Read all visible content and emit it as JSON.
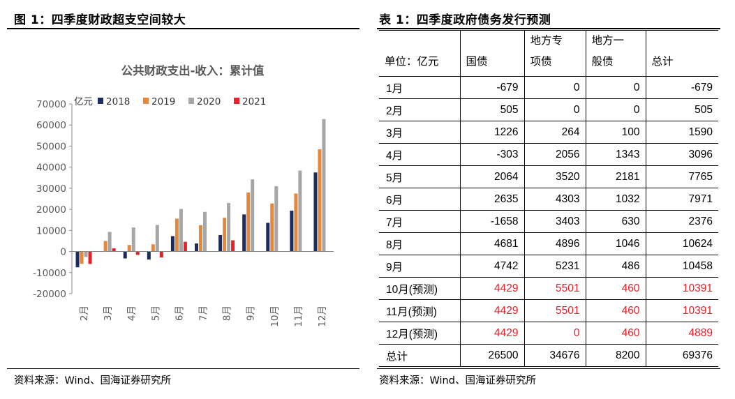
{
  "figure": {
    "title": "图 1：四季度财政超支空间较大",
    "source": "资料来源：Wind、国海证券研究所"
  },
  "table_section": {
    "title": "表 1：四季度政府债务发行预测",
    "source": "资料来源：Wind、国海证券研究所"
  },
  "chart_data": {
    "type": "bar",
    "title": "公共财政支出-收入：累计值",
    "ylabel": "亿元",
    "xlabel": "",
    "ylim": [
      -20000,
      70000
    ],
    "yticks": [
      -20000,
      -10000,
      0,
      10000,
      20000,
      30000,
      40000,
      50000,
      60000,
      70000
    ],
    "grid": false,
    "legend": "top-left",
    "categories": [
      "2月",
      "3月",
      "4月",
      "5月",
      "6月",
      "7月",
      "8月",
      "9月",
      "10月",
      "11月",
      "12月"
    ],
    "series": [
      {
        "name": "2018",
        "color": "#1b2c5f",
        "values": [
          -7500,
          0,
          -3300,
          -3800,
          7300,
          3800,
          7800,
          17600,
          13600,
          19400,
          37500
        ]
      },
      {
        "name": "2019",
        "color": "#e8873a",
        "values": [
          -5800,
          5000,
          3100,
          3400,
          15600,
          12500,
          16000,
          28000,
          22800,
          27500,
          48500
        ]
      },
      {
        "name": "2020",
        "color": "#a6a6a6",
        "values": [
          -2600,
          9300,
          11400,
          12600,
          20200,
          18800,
          23000,
          34200,
          31000,
          38400,
          62800
        ]
      },
      {
        "name": "2021",
        "color": "#e8202a",
        "values": [
          -5900,
          1500,
          -1600,
          -2800,
          4600,
          null,
          5300,
          null,
          null,
          null,
          null
        ]
      }
    ]
  },
  "table": {
    "headers": [
      "单位：亿元",
      "国债",
      "地方专项债",
      "地方一般债",
      "总计"
    ],
    "header_lines": [
      [
        "单位：亿元"
      ],
      [
        "国债"
      ],
      [
        "地方专",
        "项债"
      ],
      [
        "地方一",
        "般债"
      ],
      [
        "总计"
      ]
    ],
    "rows": [
      {
        "label": "1月",
        "values": [
          "-679",
          "0",
          "0",
          "-679"
        ]
      },
      {
        "label": "2月",
        "values": [
          "505",
          "0",
          "0",
          "505"
        ]
      },
      {
        "label": "3月",
        "values": [
          "1226",
          "264",
          "100",
          "1590"
        ]
      },
      {
        "label": "4月",
        "values": [
          "-303",
          "2056",
          "1343",
          "3096"
        ]
      },
      {
        "label": "5月",
        "values": [
          "2064",
          "3520",
          "2181",
          "7765"
        ]
      },
      {
        "label": "6月",
        "values": [
          "2635",
          "4303",
          "1032",
          "7971"
        ]
      },
      {
        "label": "7月",
        "values": [
          "-1658",
          "3403",
          "630",
          "2376"
        ]
      },
      {
        "label": "8月",
        "values": [
          "4681",
          "4896",
          "1046",
          "10624"
        ]
      },
      {
        "label": "9月",
        "values": [
          "4742",
          "5231",
          "486",
          "10458"
        ]
      },
      {
        "label": "10月(预测)",
        "values": [
          "4429",
          "5501",
          "460",
          "10391"
        ],
        "forecast": true
      },
      {
        "label": "11月(预测)",
        "values": [
          "4429",
          "5501",
          "460",
          "10391"
        ],
        "forecast": true
      },
      {
        "label": "12月(预测)",
        "values": [
          "4429",
          "0",
          "460",
          "4889"
        ],
        "forecast": true
      },
      {
        "label": "总计",
        "values": [
          "26500",
          "34676",
          "8200",
          "69376"
        ]
      }
    ],
    "forecast_color": "#e8202a"
  }
}
